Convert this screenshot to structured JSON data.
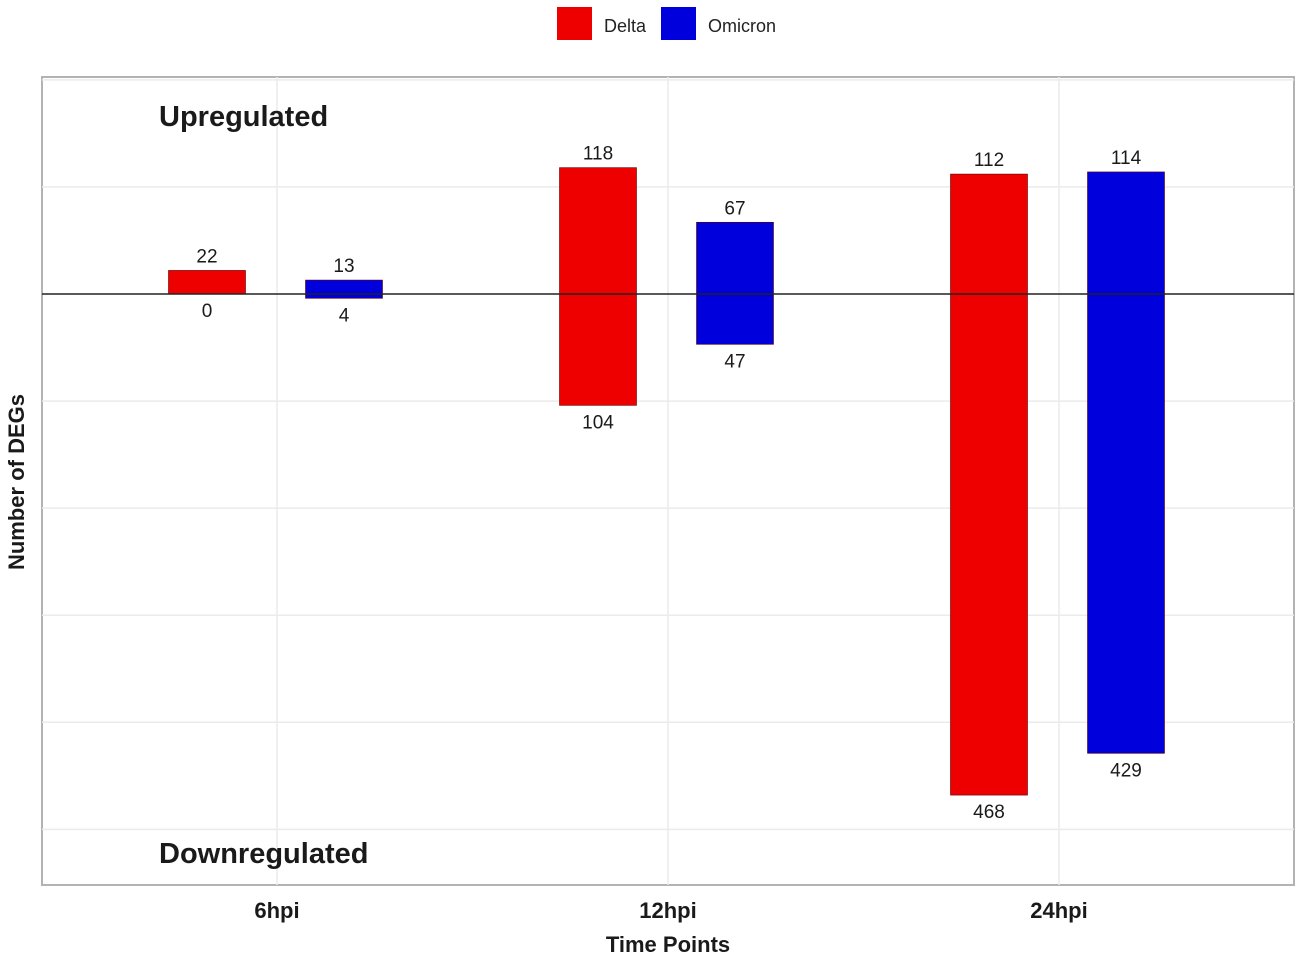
{
  "chart_data": {
    "type": "bar",
    "categories": [
      "6hpi",
      "12hpi",
      "24hpi"
    ],
    "series": [
      {
        "name": "Delta",
        "color": "#ee0000",
        "up": [
          22,
          118,
          112
        ],
        "down": [
          0,
          104,
          468
        ]
      },
      {
        "name": "Omicron",
        "color": "#0000dd",
        "up": [
          13,
          67,
          114
        ],
        "down": [
          4,
          47,
          429
        ]
      }
    ],
    "up_label": "Upregulated",
    "down_label": "Downregulated",
    "xlabel": "Time Points",
    "ylabel": "Number of DEGs",
    "legend_position": "top",
    "grid": true,
    "ylim": [
      -500,
      200
    ]
  }
}
